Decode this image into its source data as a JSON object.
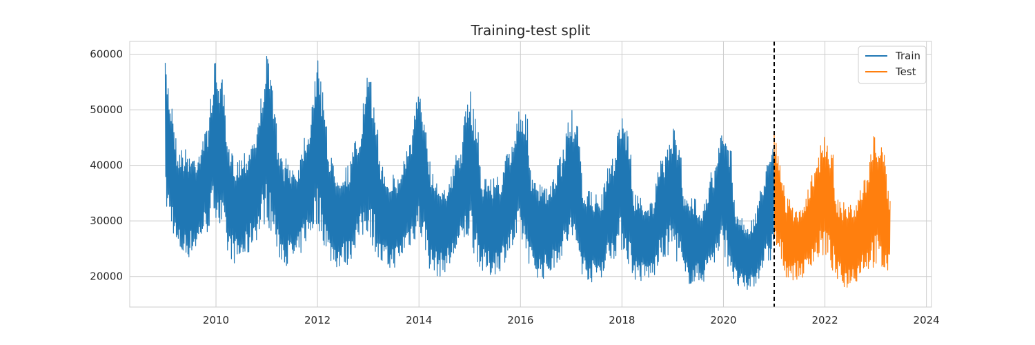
{
  "chart_data": {
    "type": "line",
    "title": "Training-test split",
    "xlabel": "",
    "ylabel": "",
    "xlim": [
      2008.3,
      2024.1
    ],
    "ylim": [
      14500,
      62300
    ],
    "x_ticks": [
      "2010",
      "2012",
      "2014",
      "2016",
      "2018",
      "2020",
      "2022",
      "2024"
    ],
    "y_ticks": [
      "20000",
      "30000",
      "40000",
      "50000",
      "60000"
    ],
    "grid": true,
    "legend_position": "top-right",
    "split_date": "2021-01-01",
    "split_line": {
      "style": "dashed",
      "color": "#000000"
    },
    "series": [
      {
        "name": "Train",
        "color": "#1f77b4",
        "x": [
          "2009-01-01",
          "2009-02-15",
          "2009-04-01",
          "2009-06-01",
          "2009-08-01",
          "2009-10-15",
          "2010-01-01",
          "2010-02-15",
          "2010-04-01",
          "2010-06-01",
          "2010-08-01",
          "2010-10-15",
          "2011-01-01",
          "2011-02-15",
          "2011-04-01",
          "2011-06-01",
          "2011-08-01",
          "2011-10-15",
          "2012-01-01",
          "2012-02-15",
          "2012-04-01",
          "2012-06-01",
          "2012-08-01",
          "2012-10-15",
          "2013-01-01",
          "2013-02-15",
          "2013-04-01",
          "2013-06-01",
          "2013-08-01",
          "2013-10-15",
          "2014-01-01",
          "2014-02-15",
          "2014-04-01",
          "2014-06-01",
          "2014-08-01",
          "2014-10-15",
          "2015-01-01",
          "2015-02-15",
          "2015-04-01",
          "2015-06-01",
          "2015-08-01",
          "2015-10-15",
          "2016-01-01",
          "2016-02-15",
          "2016-04-01",
          "2016-06-01",
          "2016-08-01",
          "2016-10-15",
          "2017-01-01",
          "2017-02-15",
          "2017-04-01",
          "2017-06-01",
          "2017-08-01",
          "2017-10-15",
          "2018-01-01",
          "2018-02-15",
          "2018-04-01",
          "2018-06-01",
          "2018-08-01",
          "2018-10-15",
          "2019-01-01",
          "2019-02-15",
          "2019-04-01",
          "2019-06-01",
          "2019-08-01",
          "2019-10-15",
          "2020-01-01",
          "2020-02-15",
          "2020-04-01",
          "2020-06-01",
          "2020-08-01",
          "2020-10-15",
          "2021-01-01"
        ],
        "high": [
          59000,
          52800,
          44000,
          43500,
          42500,
          46500,
          59500,
          56000,
          43500,
          42000,
          43500,
          47000,
          60500,
          55500,
          42500,
          41500,
          40500,
          47000,
          59500,
          54500,
          42000,
          40000,
          40500,
          45500,
          57000,
          53500,
          41500,
          39000,
          38500,
          44500,
          53500,
          50500,
          40000,
          37500,
          37500,
          43500,
          54000,
          50500,
          38500,
          38500,
          38500,
          43500,
          52000,
          49500,
          37500,
          37000,
          36500,
          42500,
          50500,
          47500,
          36500,
          35500,
          35000,
          41500,
          50500,
          47000,
          35500,
          34500,
          34000,
          41500,
          47000,
          46500,
          34500,
          34500,
          33500,
          39500,
          47000,
          45500,
          32500,
          30500,
          30500,
          38500,
          47500
        ],
        "low": [
          31000,
          28000,
          23500,
          22500,
          24000,
          27000,
          30000,
          26000,
          23000,
          21500,
          22500,
          26000,
          29000,
          26000,
          22500,
          21500,
          22000,
          25500,
          28000,
          25000,
          22000,
          21000,
          21500,
          25000,
          27000,
          24000,
          21000,
          20500,
          21500,
          24500,
          26500,
          23500,
          20000,
          19500,
          21000,
          24000,
          26000,
          22500,
          20000,
          19500,
          20500,
          23500,
          25500,
          22500,
          20000,
          19000,
          20000,
          22500,
          25000,
          22500,
          19500,
          18500,
          19500,
          22500,
          24000,
          21500,
          19000,
          18500,
          19000,
          22000,
          24000,
          21500,
          18500,
          18000,
          18500,
          21500,
          23500,
          20500,
          17500,
          16500,
          17500,
          20500,
          22500
        ]
      },
      {
        "name": "Test",
        "color": "#ff7f0e",
        "x": [
          "2021-01-01",
          "2021-02-15",
          "2021-04-01",
          "2021-06-01",
          "2021-08-01",
          "2021-10-15",
          "2022-01-01",
          "2022-02-15",
          "2022-04-01",
          "2022-06-01",
          "2022-08-01",
          "2022-10-15",
          "2023-01-01",
          "2023-02-15",
          "2023-04-15"
        ],
        "high": [
          47000,
          41500,
          34500,
          33000,
          33500,
          40000,
          47000,
          44500,
          34500,
          33500,
          33000,
          38500,
          47000,
          44500,
          35000
        ],
        "low": [
          24000,
          22000,
          19500,
          19000,
          19500,
          22000,
          23000,
          20500,
          18500,
          17500,
          18500,
          20500,
          21000,
          19500,
          20000
        ]
      }
    ]
  }
}
